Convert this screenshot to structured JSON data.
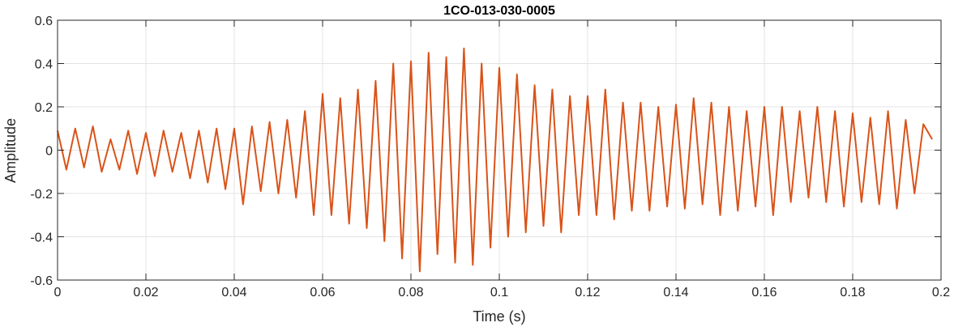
{
  "chart_data": {
    "type": "line",
    "title": "1CO-013-030-0005",
    "xlabel": "Time (s)",
    "ylabel": "Amplitude",
    "xlim": [
      0,
      0.2
    ],
    "ylim": [
      -0.6,
      0.6
    ],
    "xticks": [
      0,
      0.02,
      0.04,
      0.06,
      0.08,
      0.1,
      0.12,
      0.14,
      0.16,
      0.18,
      0.2
    ],
    "xtick_labels": [
      "0",
      "0.02",
      "0.04",
      "0.06",
      "0.08",
      "0.1",
      "0.12",
      "0.14",
      "0.16",
      "0.18",
      "0.2"
    ],
    "yticks": [
      -0.6,
      -0.4,
      -0.2,
      0,
      0.2,
      0.4,
      0.6
    ],
    "ytick_labels": [
      "-0.6",
      "-0.4",
      "-0.2",
      "0",
      "0.2",
      "0.4",
      "0.6"
    ],
    "grid": true,
    "legend": "none",
    "series": [
      {
        "color": "#D95319",
        "x": [
          0,
          0.002,
          0.004,
          0.006,
          0.008,
          0.01,
          0.012,
          0.014,
          0.016,
          0.018,
          0.02,
          0.022,
          0.024,
          0.026,
          0.028,
          0.03,
          0.032,
          0.034,
          0.036,
          0.038,
          0.04,
          0.042,
          0.044,
          0.046,
          0.048,
          0.05,
          0.052,
          0.054,
          0.056,
          0.058,
          0.06,
          0.062,
          0.064,
          0.066,
          0.068,
          0.07,
          0.072,
          0.074,
          0.076,
          0.078,
          0.08,
          0.082,
          0.084,
          0.086,
          0.088,
          0.09,
          0.092,
          0.094,
          0.096,
          0.098,
          0.1,
          0.102,
          0.104,
          0.106,
          0.108,
          0.11,
          0.112,
          0.114,
          0.116,
          0.118,
          0.12,
          0.122,
          0.124,
          0.126,
          0.128,
          0.13,
          0.132,
          0.134,
          0.136,
          0.138,
          0.14,
          0.142,
          0.144,
          0.146,
          0.148,
          0.15,
          0.152,
          0.154,
          0.156,
          0.158,
          0.16,
          0.162,
          0.164,
          0.166,
          0.168,
          0.17,
          0.172,
          0.174,
          0.176,
          0.178,
          0.18,
          0.182,
          0.184,
          0.186,
          0.188,
          0.19,
          0.192,
          0.194,
          0.196,
          0.198
        ],
        "y": [
          0.09,
          -0.09,
          0.1,
          -0.08,
          0.11,
          -0.1,
          0.05,
          -0.09,
          0.09,
          -0.11,
          0.08,
          -0.12,
          0.09,
          -0.1,
          0.08,
          -0.13,
          0.09,
          -0.15,
          0.1,
          -0.18,
          0.1,
          -0.25,
          0.11,
          -0.19,
          0.13,
          -0.2,
          0.14,
          -0.22,
          0.18,
          -0.3,
          0.26,
          -0.3,
          0.24,
          -0.34,
          0.28,
          -0.36,
          0.32,
          -0.42,
          0.4,
          -0.5,
          0.41,
          -0.56,
          0.45,
          -0.48,
          0.43,
          -0.52,
          0.47,
          -0.53,
          0.4,
          -0.45,
          0.38,
          -0.4,
          0.35,
          -0.38,
          0.3,
          -0.35,
          0.28,
          -0.38,
          0.25,
          -0.3,
          0.25,
          -0.3,
          0.28,
          -0.32,
          0.22,
          -0.28,
          0.22,
          -0.28,
          0.2,
          -0.26,
          0.21,
          -0.27,
          0.24,
          -0.25,
          0.22,
          -0.3,
          0.2,
          -0.28,
          0.18,
          -0.26,
          0.2,
          -0.3,
          0.2,
          -0.24,
          0.18,
          -0.22,
          0.2,
          -0.24,
          0.18,
          -0.26,
          0.17,
          -0.24,
          0.15,
          -0.25,
          0.18,
          -0.27,
          0.14,
          -0.2,
          0.12,
          0.05
        ]
      }
    ]
  }
}
